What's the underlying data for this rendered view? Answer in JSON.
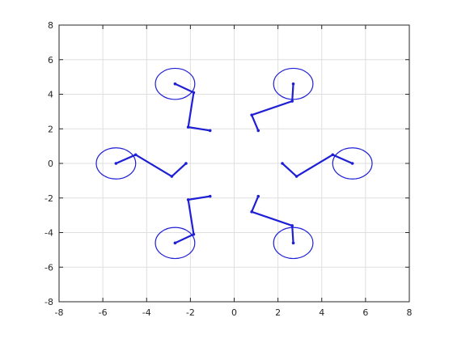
{
  "chart_data": {
    "type": "line",
    "title": "",
    "xlabel": "",
    "ylabel": "",
    "xlim": [
      -8,
      8
    ],
    "ylim": [
      -8,
      8
    ],
    "xticks": [
      -8,
      -6,
      -4,
      -2,
      0,
      2,
      4,
      6,
      8
    ],
    "yticks": [
      -8,
      -6,
      -4,
      -2,
      0,
      2,
      4,
      6,
      8
    ],
    "grid": true,
    "legend": "none",
    "color": "#1f1fd6",
    "circle_radius": 0.9,
    "circle_centers": [
      [
        -5.4,
        0
      ],
      [
        5.4,
        0
      ],
      [
        -2.7,
        4.6
      ],
      [
        2.7,
        4.6
      ],
      [
        -2.7,
        -4.6
      ],
      [
        2.7,
        -4.6
      ]
    ],
    "series": [
      {
        "points": [
          [
            -2.2,
            0
          ],
          [
            -2.85,
            -0.75
          ],
          [
            -4.5,
            0.5
          ],
          [
            -5.4,
            0
          ]
        ]
      },
      {
        "points": [
          [
            2.2,
            0
          ],
          [
            2.85,
            -0.75
          ],
          [
            4.5,
            0.5
          ],
          [
            5.4,
            0
          ]
        ]
      },
      {
        "points": [
          [
            -1.1,
            1.9
          ],
          [
            -2.1,
            2.1
          ],
          [
            -1.85,
            4.1
          ],
          [
            -2.7,
            4.6
          ]
        ]
      },
      {
        "points": [
          [
            1.1,
            1.9
          ],
          [
            0.8,
            2.8
          ],
          [
            2.65,
            3.6
          ],
          [
            2.7,
            4.6
          ]
        ]
      },
      {
        "points": [
          [
            -1.1,
            -1.9
          ],
          [
            -2.1,
            -2.1
          ],
          [
            -1.85,
            -4.1
          ],
          [
            -2.7,
            -4.6
          ]
        ]
      },
      {
        "points": [
          [
            1.1,
            -1.9
          ],
          [
            0.8,
            -2.8
          ],
          [
            2.65,
            -3.6
          ],
          [
            2.7,
            -4.6
          ]
        ]
      }
    ]
  }
}
